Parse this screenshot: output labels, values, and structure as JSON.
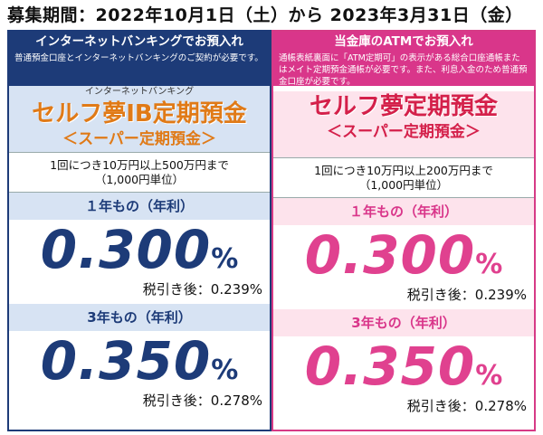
{
  "period": "募集期間：2022年10月1日（土）から 2023年3月31日（金）",
  "left": {
    "header_title": "インターネットバンキングでお預入れ",
    "header_note": "普通預金口座とインターネットバンキングのご契約が必要です。",
    "product_small": "インターネットバンキング",
    "product_name": "セルフ夢IB定期預金",
    "product_sub": "＜スーパー定期預金＞",
    "amount_line1": "1回につき10万円以上500万円まで",
    "amount_line2": "（1,000円単位）",
    "term1_label": "１年もの（年利）",
    "term1_rate": "0.300",
    "term1_pct": "%",
    "term1_after": "税引き後：0.239%",
    "term3_label": "3年もの（年利）",
    "term3_rate": "0.350",
    "term3_pct": "%",
    "term3_after": "税引き後：0.278%"
  },
  "right": {
    "header_title": "当金庫のATMでお預入れ",
    "header_note": "通帳表紙裏面に「ATM定期可」の表示がある総合口座通帳またはメイト定期預金通帳が必要です。また、利息入金のため普通預金口座が必要です。",
    "product_name": "セルフ夢定期預金",
    "product_sub": "＜スーパー定期預金＞",
    "amount_line1": "1回につき10万円以上200万円まで",
    "amount_line2": "（1,000円単位）",
    "term1_label": "１年もの（年利）",
    "term1_rate": "0.300",
    "term1_pct": "%",
    "term1_after": "税引き後：0.239%",
    "term3_label": "3年もの（年利）",
    "term3_rate": "0.350",
    "term3_pct": "%",
    "term3_after": "税引き後：0.278%"
  },
  "colors": {
    "navy": "#1d3b78",
    "pink": "#d9368a",
    "orange": "#e07a17",
    "red": "#d4204a",
    "light_blue": "#d7e3f3",
    "light_pink": "#fde3ec"
  }
}
